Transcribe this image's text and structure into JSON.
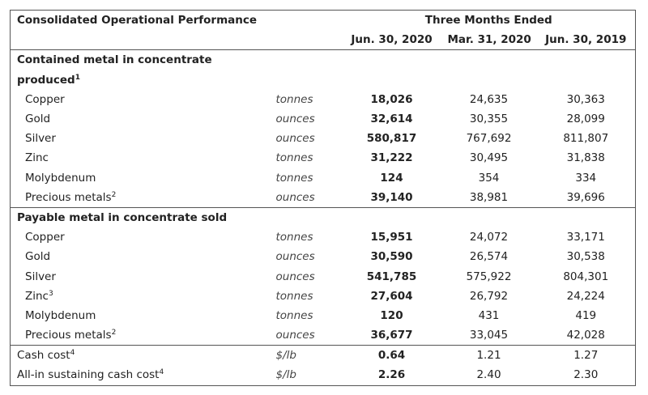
{
  "header": {
    "title": "Consolidated Operational Performance",
    "group": "Three Months Ended",
    "columns": [
      "Jun. 30, 2020",
      "Mar. 31, 2020",
      "Jun. 30, 2019"
    ]
  },
  "sections": [
    {
      "title_line1": "Contained metal in concentrate",
      "title_line2": "produced",
      "title_sup": "1",
      "rows": [
        {
          "label": "Copper",
          "sup": "",
          "unit": "tonnes",
          "v1": "18,026",
          "v2": "24,635",
          "v3": "30,363"
        },
        {
          "label": "Gold",
          "sup": "",
          "unit": "ounces",
          "v1": "32,614",
          "v2": "30,355",
          "v3": "28,099"
        },
        {
          "label": "Silver",
          "sup": "",
          "unit": "ounces",
          "v1": "580,817",
          "v2": "767,692",
          "v3": "811,807"
        },
        {
          "label": "Zinc",
          "sup": "",
          "unit": "tonnes",
          "v1": "31,222",
          "v2": "30,495",
          "v3": "31,838"
        },
        {
          "label": "Molybdenum",
          "sup": "",
          "unit": "tonnes",
          "v1": "124",
          "v2": "354",
          "v3": "334"
        },
        {
          "label": "Precious metals",
          "sup": "2",
          "unit": "ounces",
          "v1": "39,140",
          "v2": "38,981",
          "v3": "39,696"
        }
      ]
    },
    {
      "title_line1": "Payable metal in concentrate sold",
      "rows": [
        {
          "label": "Copper",
          "sup": "",
          "unit": "tonnes",
          "v1": "15,951",
          "v2": "24,072",
          "v3": "33,171"
        },
        {
          "label": "Gold",
          "sup": "",
          "unit": "ounces",
          "v1": "30,590",
          "v2": "26,574",
          "v3": "30,538"
        },
        {
          "label": "Silver",
          "sup": "",
          "unit": "ounces",
          "v1": "541,785",
          "v2": "575,922",
          "v3": "804,301"
        },
        {
          "label": "Zinc",
          "sup": "3",
          "unit": "tonnes",
          "v1": "27,604",
          "v2": "26,792",
          "v3": "24,224"
        },
        {
          "label": "Molybdenum",
          "sup": "",
          "unit": "tonnes",
          "v1": "120",
          "v2": "431",
          "v3": "419"
        },
        {
          "label": "Precious metals",
          "sup": "2",
          "unit": "ounces",
          "v1": "36,677",
          "v2": "33,045",
          "v3": "42,028"
        }
      ]
    }
  ],
  "costs": [
    {
      "label": "Cash cost",
      "sup": "4",
      "unit": "$/lb",
      "v1": "0.64",
      "v2": "1.21",
      "v3": "1.27"
    },
    {
      "label": "All-in sustaining cash cost",
      "sup": "4",
      "unit": "$/lb",
      "v1": "2.26",
      "v2": "2.40",
      "v3": "2.30"
    }
  ]
}
